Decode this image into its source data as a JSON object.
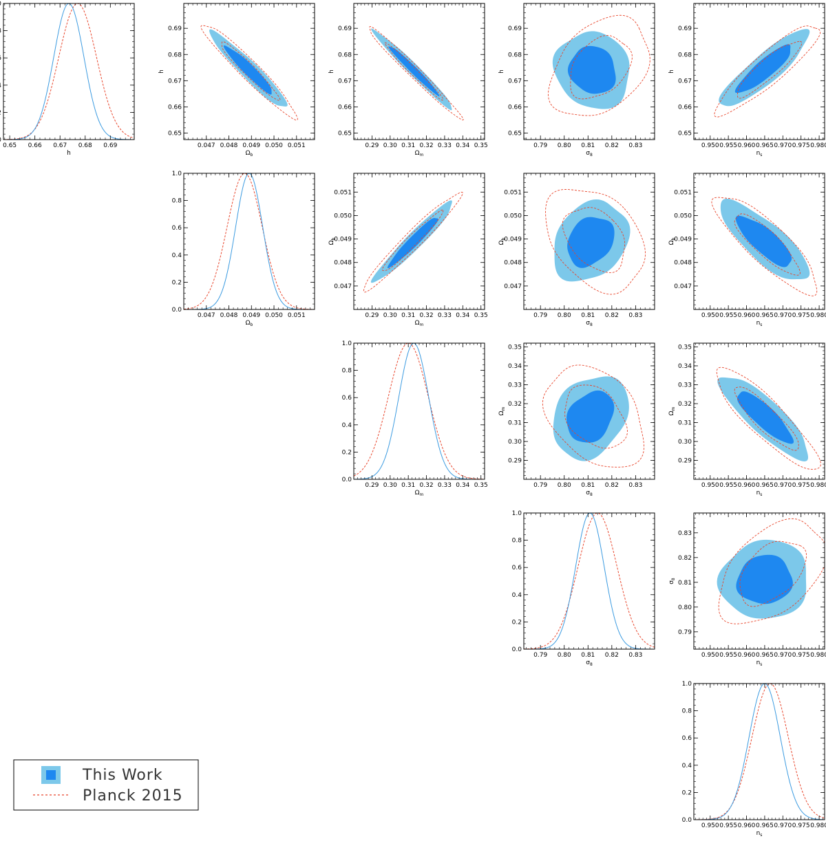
{
  "legend": {
    "entries": [
      {
        "label": "This Work",
        "color": "#1e88f0",
        "color_outer": "#7cc8ea",
        "style": "filled"
      },
      {
        "label": "Planck 2015",
        "color": "#e8442a",
        "style": "dashed"
      }
    ]
  },
  "colors": {
    "inner": "#1e88f0",
    "outer": "#7cc8ea",
    "this_work_line": "#3a9ae0",
    "planck_line": "#e8442a"
  },
  "parameters": [
    {
      "key": "h",
      "label": "h",
      "range": [
        0.6475,
        0.6995
      ],
      "ticks": [
        "0.65",
        "0.66",
        "0.67",
        "0.68",
        "0.69"
      ],
      "tick_values": [
        0.65,
        0.66,
        0.67,
        0.68,
        0.69
      ]
    },
    {
      "key": "ob",
      "label": "Ω_b",
      "range": [
        0.046,
        0.0518
      ],
      "ticks": [
        "0.047",
        "0.048",
        "0.049",
        "0.050",
        "0.051"
      ],
      "tick_values": [
        0.047,
        0.048,
        0.049,
        0.05,
        0.051
      ]
    },
    {
      "key": "om",
      "label": "Ω_m",
      "range": [
        0.28,
        0.352
      ],
      "ticks": [
        "0.29",
        "0.30",
        "0.31",
        "0.32",
        "0.33",
        "0.34",
        "0.35"
      ],
      "tick_values": [
        0.29,
        0.3,
        0.31,
        0.32,
        0.33,
        0.34,
        0.35
      ]
    },
    {
      "key": "s8",
      "label": "σ_8",
      "range": [
        0.783,
        0.838
      ],
      "ticks": [
        "0.79",
        "0.80",
        "0.81",
        "0.82",
        "0.83"
      ],
      "tick_values": [
        0.79,
        0.8,
        0.81,
        0.82,
        0.83
      ]
    },
    {
      "key": "ns",
      "label": "n_s",
      "range": [
        0.9455,
        0.9815
      ],
      "ticks": [
        "0.950",
        "0.955",
        "0.960",
        "0.965",
        "0.970",
        "0.975",
        "0.980"
      ],
      "tick_values": [
        0.95,
        0.955,
        0.96,
        0.965,
        0.97,
        0.975,
        0.98
      ]
    }
  ],
  "chart_data": {
    "type": "corner",
    "title": "",
    "series_names": [
      "This Work",
      "Planck 2015"
    ],
    "marginal_ylim": [
      0,
      1
    ],
    "marginal_yticks": [
      "0.0",
      "0.2",
      "0.4",
      "0.6",
      "0.8",
      "1.0"
    ],
    "marginal_ytick_values": [
      0,
      0.2,
      0.4,
      0.6,
      0.8,
      1.0
    ],
    "marginal_ylim_alt": [
      0,
      1
    ],
    "marginals": [
      {
        "param": "h",
        "this_work": {
          "mean": 0.6735,
          "sigma": 0.006
        },
        "planck": {
          "mean": 0.677,
          "sigma": 0.0075
        }
      },
      {
        "param": "ob",
        "this_work": {
          "mean": 0.0489,
          "sigma": 0.0006
        },
        "planck": {
          "mean": 0.0487,
          "sigma": 0.00078
        }
      },
      {
        "param": "om",
        "this_work": {
          "mean": 0.313,
          "sigma": 0.0082
        },
        "planck": {
          "mean": 0.31,
          "sigma": 0.011
        }
      },
      {
        "param": "s8",
        "this_work": {
          "mean": 0.8108,
          "sigma": 0.006
        },
        "planck": {
          "mean": 0.814,
          "sigma": 0.0082
        }
      },
      {
        "param": "ns",
        "this_work": {
          "mean": 0.965,
          "sigma": 0.0043
        },
        "planck": {
          "mean": 0.9665,
          "sigma": 0.005
        }
      }
    ],
    "joint": [
      {
        "x": "ob",
        "y": "h",
        "this_work": {
          "mx": 0.0489,
          "my": 0.674,
          "sx": 0.0007,
          "sy": 0.006,
          "rho": -0.95
        },
        "planck": {
          "mx": 0.0489,
          "my": 0.674,
          "sx": 0.00085,
          "sy": 0.0073,
          "rho": -0.96
        }
      },
      {
        "x": "om",
        "y": "h",
        "this_work": {
          "mx": 0.313,
          "my": 0.674,
          "sx": 0.009,
          "sy": 0.0062,
          "rho": -0.98
        },
        "planck": {
          "mx": 0.313,
          "my": 0.6735,
          "sx": 0.0105,
          "sy": 0.0072,
          "rho": -0.985
        }
      },
      {
        "x": "s8",
        "y": "h",
        "this_work": {
          "mx": 0.812,
          "my": 0.674,
          "sx": 0.0065,
          "sy": 0.006,
          "rho": -0.1
        },
        "planck": {
          "mx": 0.815,
          "my": 0.675,
          "sx": 0.0085,
          "sy": 0.0078,
          "rho": 0.35
        }
      },
      {
        "x": "ns",
        "y": "h",
        "this_work": {
          "mx": 0.965,
          "my": 0.6745,
          "sx": 0.005,
          "sy": 0.006,
          "rho": 0.88
        },
        "planck": {
          "mx": 0.966,
          "my": 0.6745,
          "sx": 0.0058,
          "sy": 0.007,
          "rho": 0.9
        }
      },
      {
        "x": "om",
        "y": "ob",
        "this_work": {
          "mx": 0.313,
          "my": 0.0489,
          "sx": 0.009,
          "sy": 0.0007,
          "rho": 0.96
        },
        "planck": {
          "mx": 0.312,
          "my": 0.0489,
          "sx": 0.011,
          "sy": 0.00085,
          "rho": 0.97
        }
      },
      {
        "x": "s8",
        "y": "ob",
        "this_work": {
          "mx": 0.811,
          "my": 0.0489,
          "sx": 0.0065,
          "sy": 0.0007,
          "rho": 0.25
        },
        "planck": {
          "mx": 0.813,
          "my": 0.049,
          "sx": 0.0085,
          "sy": 0.0009,
          "rho": -0.35
        }
      },
      {
        "x": "ns",
        "y": "ob",
        "this_work": {
          "mx": 0.965,
          "my": 0.0489,
          "sx": 0.005,
          "sy": 0.0007,
          "rho": -0.8
        },
        "planck": {
          "mx": 0.9655,
          "my": 0.0488,
          "sx": 0.0058,
          "sy": 0.00085,
          "rho": -0.85
        }
      },
      {
        "x": "s8",
        "y": "om",
        "this_work": {
          "mx": 0.811,
          "my": 0.313,
          "sx": 0.0065,
          "sy": 0.009,
          "rho": 0.25
        },
        "planck": {
          "mx": 0.813,
          "my": 0.313,
          "sx": 0.0085,
          "sy": 0.011,
          "rho": -0.35
        }
      },
      {
        "x": "ns",
        "y": "om",
        "this_work": {
          "mx": 0.965,
          "my": 0.313,
          "sx": 0.005,
          "sy": 0.009,
          "rho": -0.85
        },
        "planck": {
          "mx": 0.9655,
          "my": 0.312,
          "sx": 0.0058,
          "sy": 0.011,
          "rho": -0.88
        }
      },
      {
        "x": "ns",
        "y": "s8",
        "this_work": {
          "mx": 0.965,
          "my": 0.811,
          "sx": 0.005,
          "sy": 0.0065,
          "rho": 0.05
        },
        "planck": {
          "mx": 0.967,
          "my": 0.814,
          "sx": 0.006,
          "sy": 0.0085,
          "rho": 0.45
        }
      }
    ]
  }
}
